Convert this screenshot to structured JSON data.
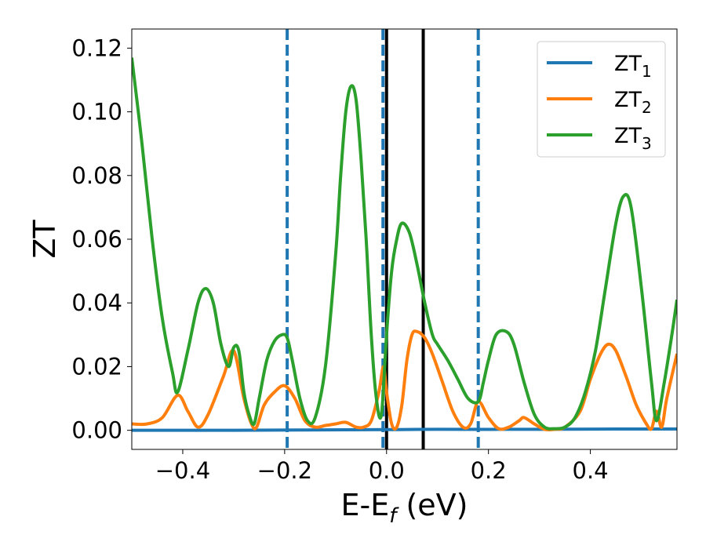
{
  "chart_data": {
    "type": "line",
    "xlabel": "E-E",
    "xlabel_sub": "f",
    "xlabel_unit": " (eV)",
    "ylabel": "ZT",
    "xlim": [
      -0.5,
      0.57
    ],
    "ylim": [
      -0.006,
      0.126
    ],
    "xticks": [
      -0.4,
      -0.2,
      0.0,
      0.2,
      0.4
    ],
    "xtick_labels": [
      "−0.4",
      "−0.2",
      "0.0",
      "0.2",
      "0.4"
    ],
    "yticks": [
      0.0,
      0.02,
      0.04,
      0.06,
      0.08,
      0.1,
      0.12
    ],
    "ytick_labels": [
      "0.00",
      "0.02",
      "0.04",
      "0.06",
      "0.08",
      "0.10",
      "0.12"
    ],
    "grid": false,
    "legend_position": "top-right",
    "vlines": [
      {
        "x": -0.195,
        "style": "dashed",
        "color": "#1f77b4"
      },
      {
        "x": -0.007,
        "style": "dashed",
        "color": "#1f77b4"
      },
      {
        "x": 0.18,
        "style": "dashed",
        "color": "#1f77b4"
      },
      {
        "x": 0.0,
        "style": "solid",
        "color": "#000000"
      },
      {
        "x": 0.072,
        "style": "solid",
        "color": "#000000"
      }
    ],
    "series": [
      {
        "name": "ZT",
        "sub": "1",
        "color": "#1f77b4",
        "x": [
          -0.5,
          -0.3,
          0.0,
          0.1,
          0.3,
          0.45,
          0.57
        ],
        "y": [
          0.0,
          0.0,
          0.0002,
          0.0003,
          0.0003,
          0.0004,
          0.0004
        ]
      },
      {
        "name": "ZT",
        "sub": "2",
        "color": "#ff7f0e",
        "x": [
          -0.5,
          -0.47,
          -0.44,
          -0.41,
          -0.39,
          -0.37,
          -0.35,
          -0.32,
          -0.3,
          -0.28,
          -0.265,
          -0.255,
          -0.24,
          -0.22,
          -0.2,
          -0.18,
          -0.16,
          -0.14,
          -0.12,
          -0.1,
          -0.08,
          -0.06,
          -0.045,
          -0.03,
          -0.015,
          -0.006,
          0.0,
          0.01,
          0.02,
          0.03,
          0.04,
          0.05,
          0.06,
          0.075,
          0.09,
          0.11,
          0.13,
          0.15,
          0.165,
          0.18,
          0.2,
          0.22,
          0.24,
          0.26,
          0.27,
          0.29,
          0.31,
          0.33,
          0.35,
          0.38,
          0.4,
          0.42,
          0.435,
          0.45,
          0.47,
          0.49,
          0.51,
          0.52,
          0.53,
          0.54,
          0.55,
          0.57
        ],
        "y": [
          0.002,
          0.002,
          0.004,
          0.011,
          0.006,
          0.001,
          0.005,
          0.017,
          0.025,
          0.01,
          0.002,
          0.001,
          0.008,
          0.012,
          0.014,
          0.01,
          0.003,
          0.001,
          0.0015,
          0.002,
          0.0025,
          0.001,
          0.001,
          0.003,
          0.012,
          0.02,
          0.012,
          0.002,
          0.001,
          0.008,
          0.022,
          0.03,
          0.031,
          0.029,
          0.024,
          0.015,
          0.006,
          0.001,
          0.002,
          0.009,
          0.004,
          0.0005,
          0.001,
          0.003,
          0.004,
          0.002,
          0.0003,
          0.0003,
          0.001,
          0.006,
          0.016,
          0.024,
          0.027,
          0.025,
          0.017,
          0.008,
          0.002,
          0.0005,
          0.006,
          0.001,
          0.01,
          0.024
        ]
      },
      {
        "name": "ZT",
        "sub": "3",
        "color": "#2ca02c",
        "x": [
          -0.5,
          -0.48,
          -0.46,
          -0.44,
          -0.42,
          -0.41,
          -0.39,
          -0.37,
          -0.355,
          -0.34,
          -0.325,
          -0.31,
          -0.3,
          -0.29,
          -0.28,
          -0.27,
          -0.26,
          -0.25,
          -0.235,
          -0.22,
          -0.205,
          -0.195,
          -0.185,
          -0.17,
          -0.155,
          -0.14,
          -0.12,
          -0.1,
          -0.09,
          -0.08,
          -0.07,
          -0.06,
          -0.05,
          -0.04,
          -0.03,
          -0.02,
          -0.01,
          0.0,
          0.01,
          0.02,
          0.03,
          0.045,
          0.06,
          0.075,
          0.09,
          0.1,
          0.12,
          0.14,
          0.16,
          0.18,
          0.19,
          0.2,
          0.215,
          0.235,
          0.25,
          0.27,
          0.29,
          0.31,
          0.33,
          0.35,
          0.37,
          0.39,
          0.41,
          0.43,
          0.45,
          0.465,
          0.48,
          0.5,
          0.52,
          0.53,
          0.545,
          0.56,
          0.57
        ],
        "y": [
          0.117,
          0.09,
          0.06,
          0.035,
          0.018,
          0.012,
          0.025,
          0.04,
          0.0445,
          0.04,
          0.027,
          0.02,
          0.026,
          0.025,
          0.012,
          0.005,
          0.002,
          0.01,
          0.022,
          0.028,
          0.03,
          0.029,
          0.022,
          0.01,
          0.003,
          0.004,
          0.02,
          0.055,
          0.08,
          0.1,
          0.108,
          0.104,
          0.085,
          0.06,
          0.03,
          0.01,
          0.005,
          0.03,
          0.05,
          0.06,
          0.065,
          0.062,
          0.052,
          0.04,
          0.03,
          0.027,
          0.022,
          0.016,
          0.01,
          0.009,
          0.015,
          0.022,
          0.03,
          0.031,
          0.027,
          0.015,
          0.005,
          0.001,
          0.0005,
          0.001,
          0.004,
          0.012,
          0.025,
          0.045,
          0.065,
          0.0735,
          0.07,
          0.045,
          0.015,
          0.003,
          0.015,
          0.03,
          0.041
        ]
      }
    ]
  }
}
